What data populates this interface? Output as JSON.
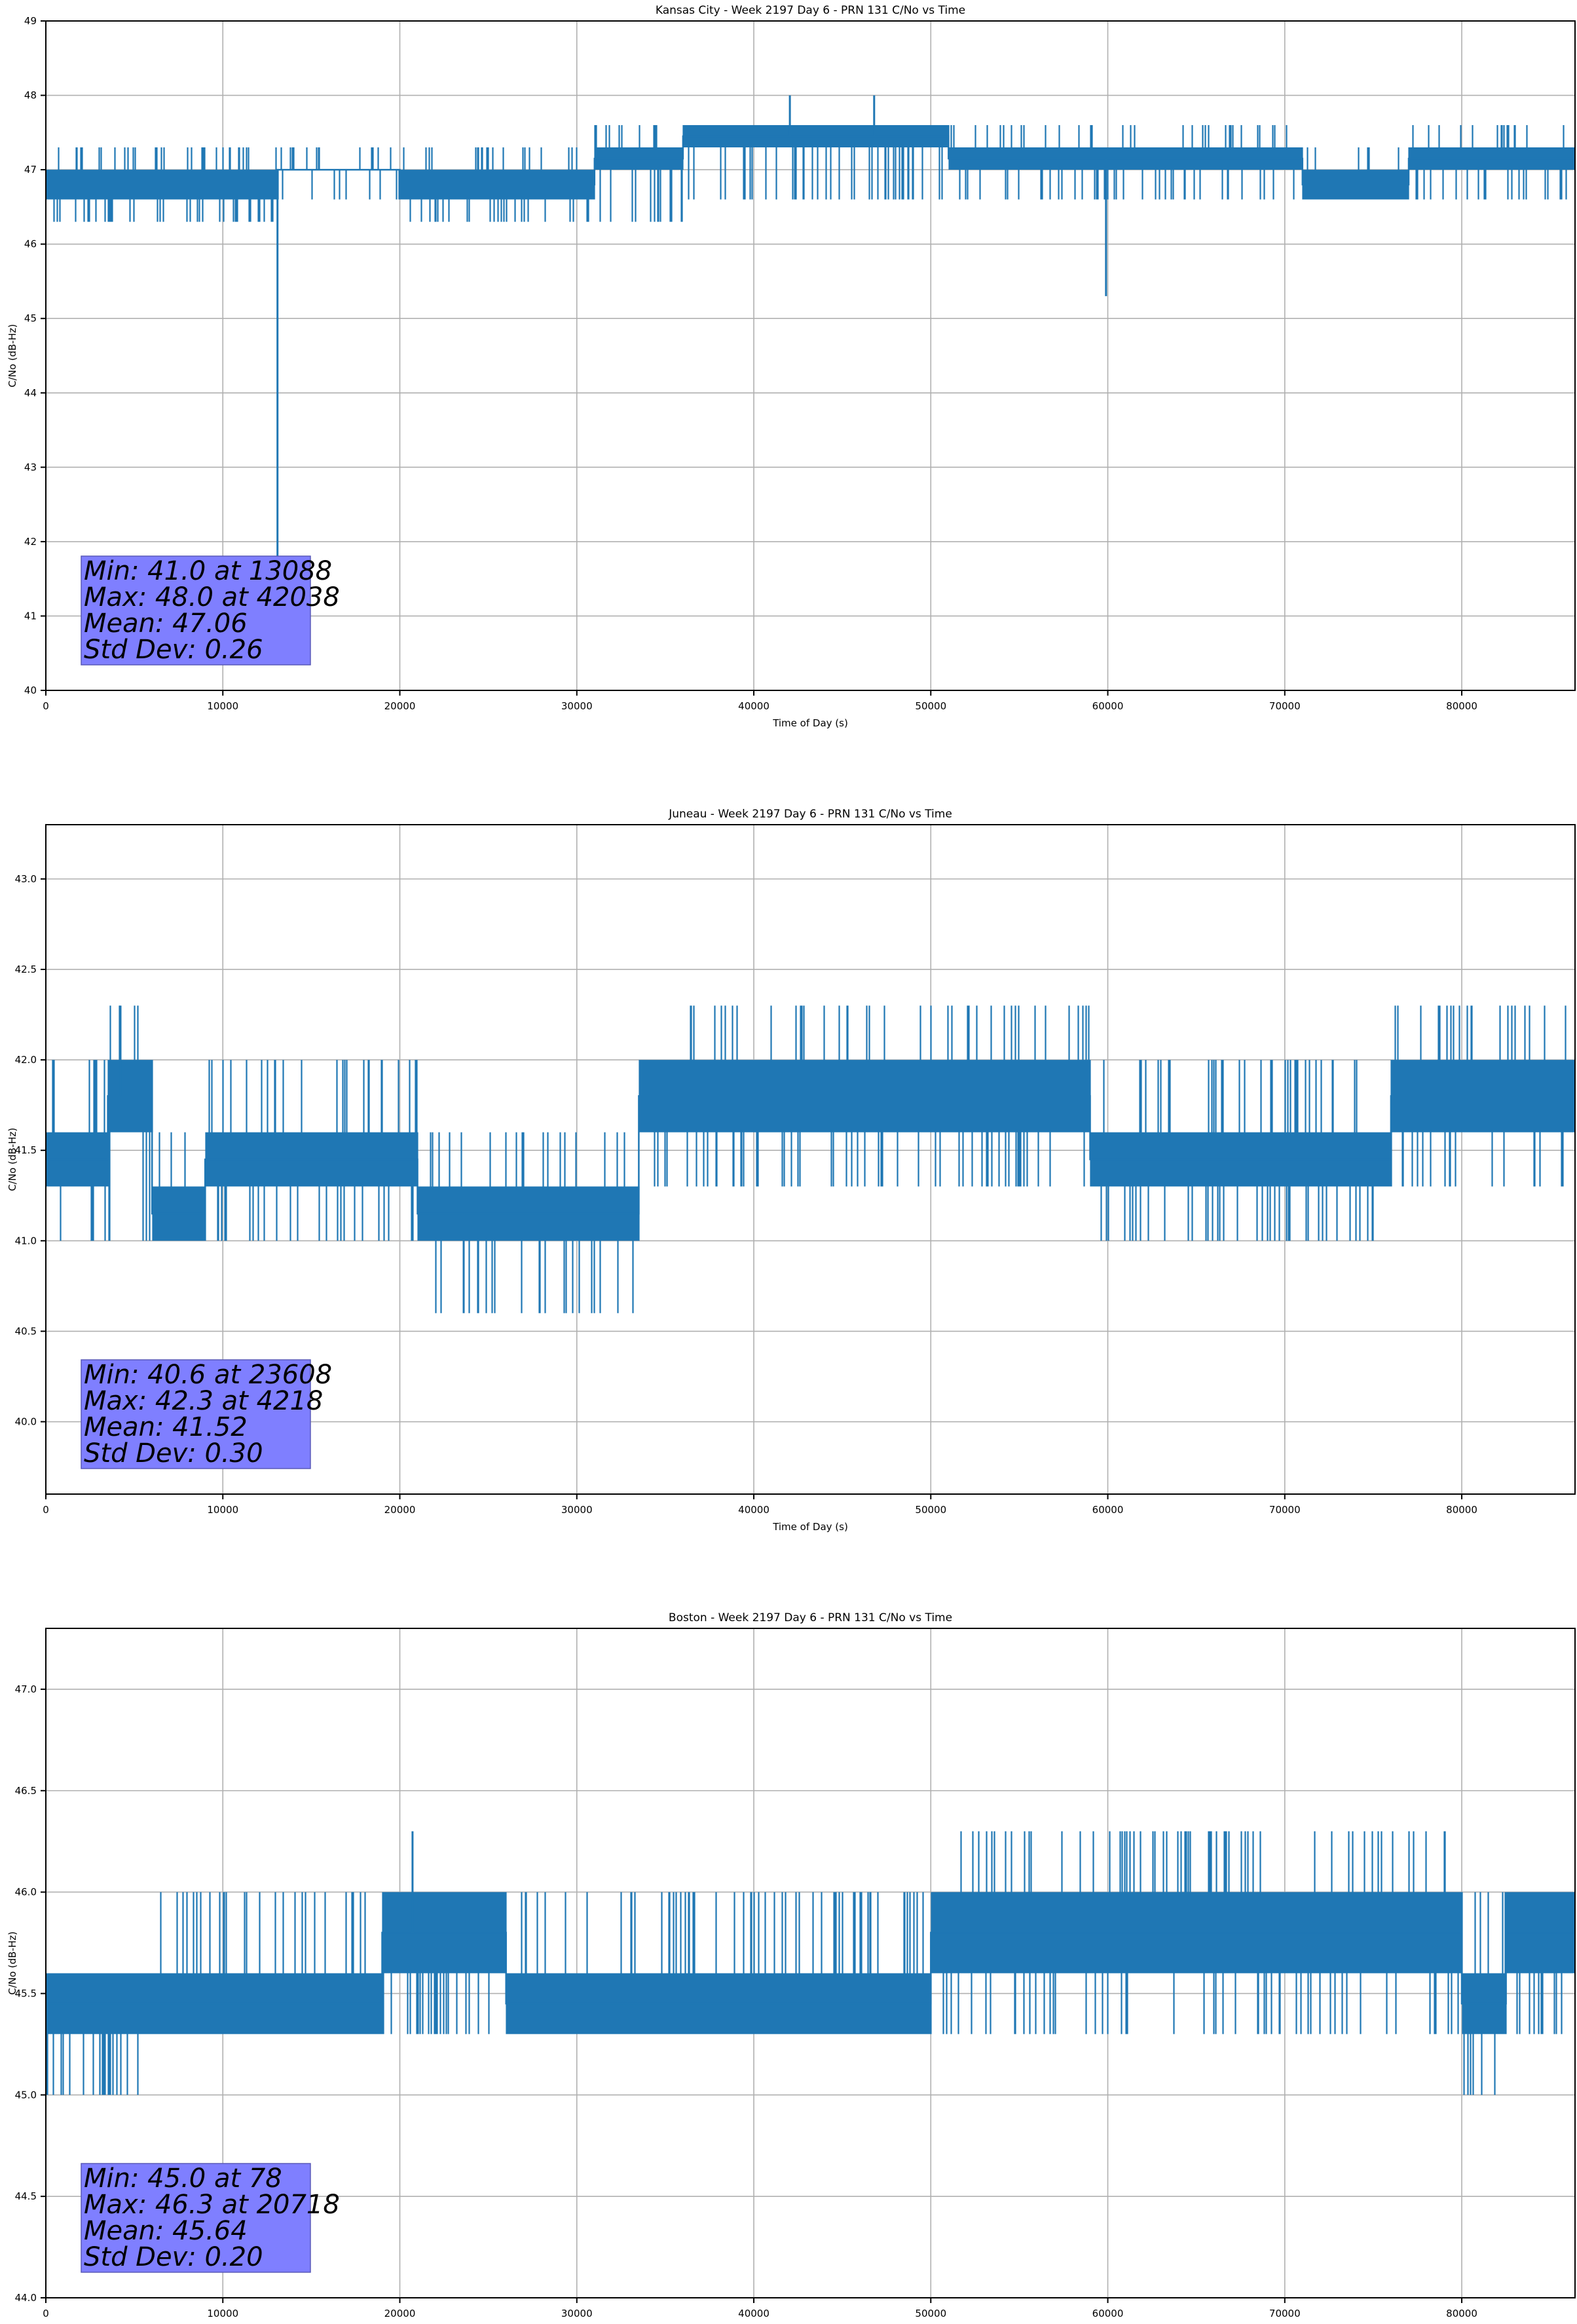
{
  "colors": {
    "series": "#1f77b4",
    "grid": "#b0b0b0",
    "stats_box": "#7f7fff",
    "axis": "#000000"
  },
  "chart_data": [
    {
      "type": "line",
      "title": "Kansas City - Week 2197 Day 6 - PRN 131 C/No vs Time",
      "xlabel": "Time of Day (s)",
      "ylabel": "C/No (dB-Hz)",
      "xlim": [
        0,
        86400
      ],
      "ylim": [
        40,
        49
      ],
      "xticks": [
        0,
        10000,
        20000,
        30000,
        40000,
        50000,
        60000,
        70000,
        80000
      ],
      "yticks": [
        40,
        41,
        42,
        43,
        44,
        45,
        46,
        47,
        48,
        49
      ],
      "ytick_labels": [
        "40",
        "41",
        "42",
        "43",
        "44",
        "45",
        "46",
        "47",
        "48",
        "49"
      ],
      "grid": true,
      "series": [
        {
          "values_note": "C/No samples vs time of day",
          "segments": [
            {
              "x0": 0,
              "x1": 13088,
              "levels": [
                46.6,
                47.0
              ],
              "lo": 46.3,
              "hi": 47.3
            },
            {
              "x0": 13088,
              "x1": 20000,
              "levels": [
                47.0,
                47.0
              ],
              "lo": 46.6,
              "hi": 47.3
            },
            {
              "x0": 20000,
              "x1": 31000,
              "levels": [
                46.6,
                47.0
              ],
              "lo": 46.3,
              "hi": 47.3
            },
            {
              "x0": 31000,
              "x1": 36000,
              "levels": [
                47.0,
                47.3
              ],
              "lo": 46.3,
              "hi": 47.6
            },
            {
              "x0": 36000,
              "x1": 51000,
              "levels": [
                47.3,
                47.6
              ],
              "lo": 46.6,
              "hi": 47.6
            },
            {
              "x0": 51000,
              "x1": 60000,
              "levels": [
                47.0,
                47.3
              ],
              "lo": 46.6,
              "hi": 47.6
            },
            {
              "x0": 60000,
              "x1": 71000,
              "levels": [
                47.0,
                47.3
              ],
              "lo": 46.6,
              "hi": 47.6
            },
            {
              "x0": 71000,
              "x1": 77000,
              "levels": [
                46.6,
                47.0
              ],
              "lo": 46.6,
              "hi": 47.3
            },
            {
              "x0": 77000,
              "x1": 86400,
              "levels": [
                47.0,
                47.3
              ],
              "lo": 46.6,
              "hi": 47.6
            }
          ],
          "spikes": [
            {
              "x": 13088,
              "y": 41.0
            },
            {
              "x": 59900,
              "y": 45.3
            },
            {
              "x": 42038,
              "y": 48.0
            },
            {
              "x": 46800,
              "y": 48.0
            }
          ]
        }
      ],
      "stats": [
        "Min: 41.0 at 13088",
        "Max: 48.0 at 42038",
        "Mean: 47.06",
        "Std Dev: 0.26"
      ]
    },
    {
      "type": "line",
      "title": "Juneau - Week 2197 Day 6 - PRN 131 C/No vs Time",
      "xlabel": "Time of Day (s)",
      "ylabel": "C/No (dB-Hz)",
      "xlim": [
        0,
        86400
      ],
      "ylim": [
        39.6,
        43.3
      ],
      "xticks": [
        0,
        10000,
        20000,
        30000,
        40000,
        50000,
        60000,
        70000,
        80000
      ],
      "yticks": [
        40.0,
        40.5,
        41.0,
        41.5,
        42.0,
        42.5,
        43.0
      ],
      "ytick_labels": [
        "40.0",
        "40.5",
        "41.0",
        "41.5",
        "42.0",
        "42.5",
        "43.0"
      ],
      "grid": true,
      "series": [
        {
          "segments": [
            {
              "x0": 0,
              "x1": 3500,
              "levels": [
                41.3,
                41.6
              ],
              "lo": 41.0,
              "hi": 42.0
            },
            {
              "x0": 3500,
              "x1": 6000,
              "levels": [
                41.6,
                42.0
              ],
              "lo": 41.0,
              "hi": 42.3
            },
            {
              "x0": 6000,
              "x1": 9000,
              "levels": [
                41.0,
                41.3
              ],
              "lo": 41.0,
              "hi": 41.6
            },
            {
              "x0": 9000,
              "x1": 21000,
              "levels": [
                41.3,
                41.6
              ],
              "lo": 41.0,
              "hi": 42.0
            },
            {
              "x0": 21000,
              "x1": 33500,
              "levels": [
                41.0,
                41.3
              ],
              "lo": 40.6,
              "hi": 41.6
            },
            {
              "x0": 33500,
              "x1": 36000,
              "levels": [
                41.6,
                42.0
              ],
              "lo": 41.3,
              "hi": 42.0
            },
            {
              "x0": 36000,
              "x1": 51000,
              "levels": [
                41.6,
                42.0
              ],
              "lo": 41.3,
              "hi": 42.3
            },
            {
              "x0": 51000,
              "x1": 59000,
              "levels": [
                41.6,
                42.0
              ],
              "lo": 41.3,
              "hi": 42.3
            },
            {
              "x0": 59000,
              "x1": 76000,
              "levels": [
                41.3,
                41.6
              ],
              "lo": 41.0,
              "hi": 42.0
            },
            {
              "x0": 76000,
              "x1": 86400,
              "levels": [
                41.6,
                42.0
              ],
              "lo": 41.3,
              "hi": 42.3
            }
          ],
          "spikes": [
            {
              "x": 23608,
              "y": 40.6
            },
            {
              "x": 4218,
              "y": 42.3
            }
          ]
        }
      ],
      "stats": [
        "Min: 40.6 at 23608",
        "Max: 42.3 at 4218",
        "Mean: 41.52",
        "Std Dev: 0.30"
      ]
    },
    {
      "type": "line",
      "title": "Boston - Week 2197 Day 6 - PRN 131 C/No vs Time",
      "xlabel": "Time of Day (s)",
      "ylabel": "C/No (dB-Hz)",
      "xlim": [
        0,
        86400
      ],
      "ylim": [
        44.0,
        47.3
      ],
      "xticks": [
        0,
        10000,
        20000,
        30000,
        40000,
        50000,
        60000,
        70000,
        80000
      ],
      "yticks": [
        44.0,
        44.5,
        45.0,
        45.5,
        46.0,
        46.5,
        47.0
      ],
      "ytick_labels": [
        "44.0",
        "44.5",
        "45.0",
        "45.5",
        "46.0",
        "46.5",
        "47.0"
      ],
      "grid": true,
      "series": [
        {
          "segments": [
            {
              "x0": 0,
              "x1": 6000,
              "levels": [
                45.3,
                45.6
              ],
              "lo": 45.0,
              "hi": 45.6
            },
            {
              "x0": 6000,
              "x1": 19000,
              "levels": [
                45.3,
                45.6
              ],
              "lo": 45.3,
              "hi": 46.0
            },
            {
              "x0": 19000,
              "x1": 26000,
              "levels": [
                45.6,
                46.0
              ],
              "lo": 45.3,
              "hi": 46.0
            },
            {
              "x0": 26000,
              "x1": 35500,
              "levels": [
                45.3,
                45.6
              ],
              "lo": 45.3,
              "hi": 46.0
            },
            {
              "x0": 35500,
              "x1": 50000,
              "levels": [
                45.3,
                45.6
              ],
              "lo": 45.3,
              "hi": 46.0
            },
            {
              "x0": 50000,
              "x1": 80000,
              "levels": [
                45.6,
                46.0
              ],
              "lo": 45.3,
              "hi": 46.3
            },
            {
              "x0": 80000,
              "x1": 82500,
              "levels": [
                45.3,
                45.6
              ],
              "lo": 45.0,
              "hi": 46.0
            },
            {
              "x0": 82500,
              "x1": 86400,
              "levels": [
                45.6,
                46.0
              ],
              "lo": 45.3,
              "hi": 46.0
            }
          ],
          "spikes": [
            {
              "x": 78,
              "y": 45.0
            },
            {
              "x": 20718,
              "y": 46.3
            }
          ]
        }
      ],
      "stats": [
        "Min: 45.0 at 78",
        "Max: 46.3 at 20718",
        "Mean: 45.64",
        "Std Dev: 0.20"
      ]
    }
  ]
}
